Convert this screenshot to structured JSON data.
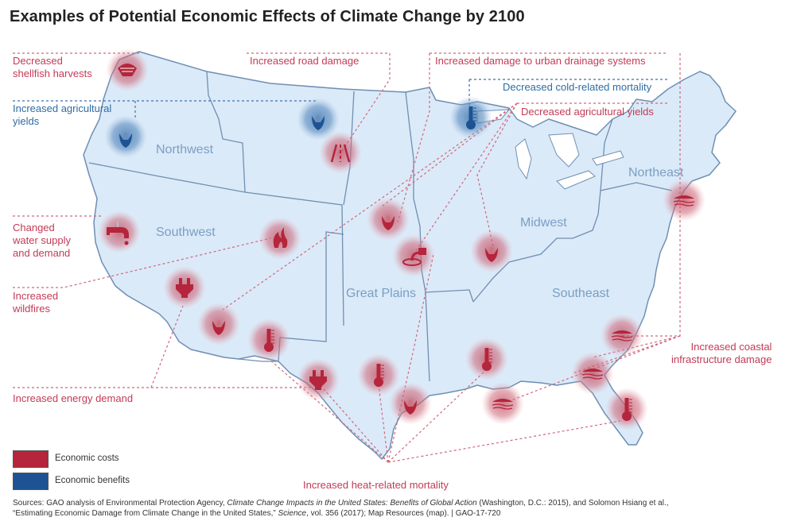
{
  "title": "Examples of Potential Economic Effects of Climate Change by 2100",
  "colors": {
    "cost": "#b5253b",
    "benefit": "#1d5393",
    "land": "#dbeaf8",
    "border": "#6f8fb3",
    "cost_label": "#c33b55",
    "benefit_label": "#2e6da4"
  },
  "regions": [
    "Northwest",
    "Southwest",
    "Great Plains",
    "Midwest",
    "Northeast",
    "Southeast"
  ],
  "effects": {
    "shellfish": "Decreased shellfish harvests",
    "shellfish_l1": "Decreased",
    "shellfish_l2": "shellfish harvests",
    "ag_yields_up_l1": "Increased agricultural",
    "ag_yields_up_l2": "yields",
    "road": "Increased road damage",
    "drainage": "Increased damage to urban drainage systems",
    "cold_mortality": "Decreased cold-related mortality",
    "ag_yields_down": "Decreased agricultural yields",
    "water_l1": "Changed",
    "water_l2": "water supply",
    "water_l3": "and demand",
    "wildfires_l1": "Increased",
    "wildfires_l2": "wildfires",
    "energy": "Increased energy demand",
    "coastal_l1": "Increased coastal",
    "coastal_l2": "infrastructure damage",
    "heat_mortality": "Increased heat-related mortality"
  },
  "icons": [
    {
      "name": "shellfish-icon",
      "type": "cost"
    },
    {
      "name": "corn-icon",
      "type": "benefit"
    },
    {
      "name": "corn-icon",
      "type": "benefit"
    },
    {
      "name": "road-icon",
      "type": "cost"
    },
    {
      "name": "thermometer-icon",
      "type": "benefit"
    },
    {
      "name": "faucet-icon",
      "type": "cost"
    },
    {
      "name": "fire-icon",
      "type": "cost"
    },
    {
      "name": "plug-icon",
      "type": "cost"
    },
    {
      "name": "corn-icon",
      "type": "cost"
    },
    {
      "name": "thermometer-icon",
      "type": "cost"
    },
    {
      "name": "plug-icon",
      "type": "cost"
    },
    {
      "name": "corn-icon",
      "type": "cost"
    },
    {
      "name": "drainage-icon",
      "type": "cost"
    },
    {
      "name": "corn-icon",
      "type": "cost"
    },
    {
      "name": "thermometer-icon",
      "type": "cost"
    },
    {
      "name": "corn-icon",
      "type": "cost"
    },
    {
      "name": "thermometer-icon",
      "type": "cost"
    },
    {
      "name": "coastal-icon",
      "type": "cost"
    },
    {
      "name": "coastal-icon",
      "type": "cost"
    },
    {
      "name": "coastal-icon",
      "type": "cost"
    },
    {
      "name": "coastal-icon",
      "type": "cost"
    },
    {
      "name": "thermometer-icon",
      "type": "cost"
    }
  ],
  "legend": {
    "cost": "Economic costs",
    "benefit": "Economic benefits"
  },
  "source": {
    "part1": "Sources: GAO analysis of Environmental Protection Agency, ",
    "italic1": "Climate Change Impacts in the United States: Benefits of Global Action",
    "part2": " (Washington, D.C.: 2015), and Solomon Hsiang et al.,",
    "part3": "“Estimating Economic Damage from Climate Change in the United States,” ",
    "italic2": "Science",
    "part4": ", vol. 356 (2017); Map Resources (map).   |  GAO-17-720"
  }
}
